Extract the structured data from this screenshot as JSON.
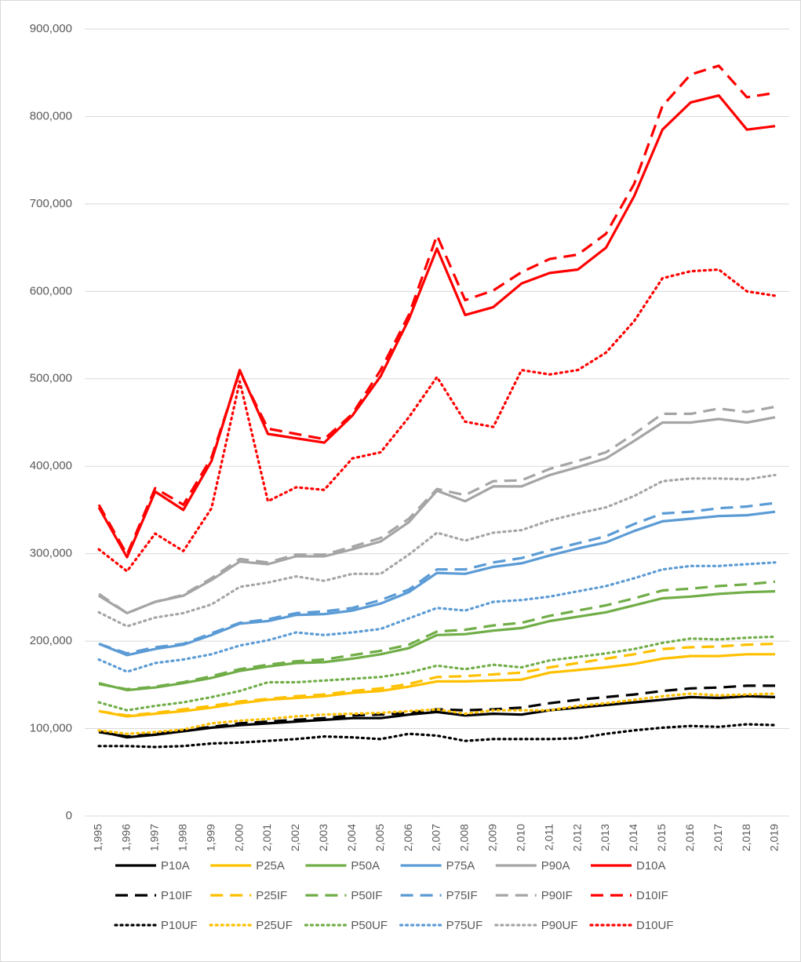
{
  "chart_data": {
    "type": "line",
    "categories": [
      "1,995",
      "1,996",
      "1,997",
      "1,998",
      "1,999",
      "2,000",
      "2,001",
      "2,002",
      "2,003",
      "2,004",
      "2,005",
      "2,006",
      "2,007",
      "2,008",
      "2,009",
      "2,010",
      "2,011",
      "2,012",
      "2,013",
      "2,014",
      "2,015",
      "2,016",
      "2,017",
      "2,018",
      "2,019"
    ],
    "ylim": [
      0,
      900000
    ],
    "yticks": [
      0,
      {
        "value": 100000,
        "label": "100,000"
      },
      {
        "value": 200000,
        "label": "200,000"
      },
      {
        "value": 300000,
        "label": "300,000"
      },
      {
        "value": 400000,
        "label": "400,000"
      },
      {
        "value": 500000,
        "label": "500,000"
      },
      {
        "value": 600000,
        "label": "600,000"
      },
      {
        "value": 700000,
        "label": "700,000"
      },
      {
        "value": 800000,
        "label": "800,000"
      },
      {
        "value": 900000,
        "label": "900,000"
      }
    ],
    "grid": true,
    "legend": "bottom",
    "series": [
      {
        "name": "P10A",
        "color": "#000000",
        "dash": "solid",
        "values": [
          97000,
          90000,
          93000,
          97000,
          101000,
          104000,
          106000,
          108000,
          110000,
          112000,
          112000,
          116000,
          119000,
          115000,
          117000,
          116000,
          121000,
          124000,
          127000,
          130000,
          133000,
          136000,
          135000,
          137000,
          136000
        ]
      },
      {
        "name": "P25A",
        "color": "#FFC000",
        "dash": "solid",
        "values": [
          120000,
          114000,
          117000,
          120000,
          124000,
          129000,
          133000,
          135000,
          137000,
          141000,
          143000,
          148000,
          154000,
          154000,
          155000,
          156000,
          164000,
          167000,
          170000,
          174000,
          180000,
          183000,
          183000,
          185000,
          185000
        ]
      },
      {
        "name": "P50A",
        "color": "#70AD47",
        "dash": "solid",
        "values": [
          152000,
          144000,
          147000,
          152000,
          158000,
          166000,
          171000,
          175000,
          176000,
          180000,
          185000,
          192000,
          207000,
          208000,
          212000,
          215000,
          223000,
          228000,
          233000,
          241000,
          249000,
          251000,
          254000,
          256000,
          257000
        ]
      },
      {
        "name": "P75A",
        "color": "#5B9BD5",
        "dash": "solid",
        "values": [
          197000,
          184000,
          191000,
          196000,
          207000,
          220000,
          223000,
          230000,
          231000,
          235000,
          243000,
          256000,
          278000,
          277000,
          285000,
          289000,
          298000,
          306000,
          313000,
          326000,
          337000,
          340000,
          343000,
          344000,
          348000
        ]
      },
      {
        "name": "P90A",
        "color": "#A5A5A5",
        "dash": "solid",
        "values": [
          252000,
          232000,
          245000,
          252000,
          270000,
          291000,
          288000,
          297000,
          297000,
          305000,
          314000,
          336000,
          372000,
          360000,
          377000,
          377000,
          390000,
          399000,
          409000,
          429000,
          450000,
          450000,
          454000,
          450000,
          456000
        ]
      },
      {
        "name": "D10A",
        "color": "#FF0000",
        "dash": "solid",
        "values": [
          353000,
          296000,
          371000,
          350000,
          406000,
          510000,
          437000,
          432000,
          427000,
          458000,
          503000,
          568000,
          649000,
          573000,
          582000,
          609000,
          621000,
          625000,
          650000,
          709000,
          785000,
          816000,
          824000,
          785000,
          789000
        ]
      },
      {
        "name": "P10IF",
        "color": "#000000",
        "dash": "dashed",
        "values": [
          96000,
          91000,
          94000,
          98000,
          102000,
          106000,
          108000,
          110000,
          112000,
          115000,
          116000,
          118000,
          122000,
          121000,
          122000,
          124000,
          129000,
          133000,
          136000,
          139000,
          143000,
          146000,
          147000,
          149000,
          149000
        ]
      },
      {
        "name": "P25IF",
        "color": "#FFC000",
        "dash": "dashed",
        "values": [
          120000,
          115000,
          118000,
          122000,
          126000,
          131000,
          134000,
          137000,
          139000,
          143000,
          146000,
          151000,
          159000,
          160000,
          162000,
          164000,
          170000,
          175000,
          180000,
          185000,
          191000,
          193000,
          194000,
          196000,
          197000
        ]
      },
      {
        "name": "P50IF",
        "color": "#70AD47",
        "dash": "dashed",
        "values": [
          151000,
          145000,
          148000,
          153000,
          160000,
          168000,
          173000,
          177000,
          179000,
          184000,
          189000,
          196000,
          211000,
          213000,
          218000,
          221000,
          229000,
          235000,
          241000,
          249000,
          258000,
          260000,
          263000,
          265000,
          268000
        ]
      },
      {
        "name": "P75IF",
        "color": "#5B9BD5",
        "dash": "dashed",
        "values": [
          197000,
          186000,
          193000,
          197000,
          209000,
          221000,
          225000,
          232000,
          234000,
          238000,
          247000,
          259000,
          282000,
          282000,
          290000,
          295000,
          304000,
          312000,
          320000,
          334000,
          346000,
          348000,
          352000,
          354000,
          358000
        ]
      },
      {
        "name": "P90IF",
        "color": "#A5A5A5",
        "dash": "dashed",
        "values": [
          254000,
          232000,
          245000,
          253000,
          272000,
          294000,
          290000,
          299000,
          299000,
          308000,
          318000,
          340000,
          374000,
          367000,
          383000,
          384000,
          397000,
          406000,
          416000,
          437000,
          460000,
          460000,
          466000,
          462000,
          468000
        ]
      },
      {
        "name": "D10IF",
        "color": "#FF0000",
        "dash": "dashed",
        "values": [
          356000,
          299000,
          375000,
          356000,
          410000,
          508000,
          443000,
          437000,
          431000,
          460000,
          510000,
          573000,
          664000,
          590000,
          601000,
          622000,
          637000,
          642000,
          666000,
          723000,
          812000,
          848000,
          858000,
          822000,
          827000
        ]
      },
      {
        "name": "P10UF",
        "color": "#000000",
        "dash": "dotted",
        "values": [
          80000,
          80000,
          79000,
          80000,
          83000,
          84000,
          86000,
          88000,
          91000,
          90000,
          88000,
          94000,
          92000,
          86000,
          88000,
          88000,
          88000,
          89000,
          94000,
          98000,
          101000,
          103000,
          102000,
          105000,
          104000
        ]
      },
      {
        "name": "P25UF",
        "color": "#FFC000",
        "dash": "dotted",
        "values": [
          98000,
          94000,
          96000,
          99000,
          106000,
          109000,
          111000,
          114000,
          116000,
          117000,
          118000,
          120000,
          122000,
          117000,
          121000,
          121000,
          121000,
          126000,
          129000,
          133000,
          137000,
          140000,
          138000,
          139000,
          140000
        ]
      },
      {
        "name": "P50UF",
        "color": "#70AD47",
        "dash": "dotted",
        "values": [
          130000,
          121000,
          126000,
          130000,
          136000,
          143000,
          153000,
          153000,
          155000,
          157000,
          159000,
          164000,
          172000,
          168000,
          173000,
          170000,
          178000,
          182000,
          186000,
          191000,
          198000,
          203000,
          202000,
          204000,
          205000
        ]
      },
      {
        "name": "P75UF",
        "color": "#5B9BD5",
        "dash": "dotted",
        "values": [
          179000,
          165000,
          175000,
          179000,
          185000,
          195000,
          201000,
          210000,
          207000,
          210000,
          214000,
          226000,
          238000,
          235000,
          245000,
          247000,
          251000,
          257000,
          263000,
          272000,
          282000,
          286000,
          286000,
          288000,
          290000
        ]
      },
      {
        "name": "P90UF",
        "color": "#A5A5A5",
        "dash": "dotted",
        "values": [
          233000,
          217000,
          227000,
          232000,
          242000,
          262000,
          267000,
          274000,
          269000,
          277000,
          277000,
          299000,
          324000,
          315000,
          324000,
          327000,
          338000,
          346000,
          353000,
          366000,
          383000,
          386000,
          386000,
          385000,
          390000
        ]
      },
      {
        "name": "D10UF",
        "color": "#FF0000",
        "dash": "dotted",
        "values": [
          305000,
          280000,
          323000,
          303000,
          352000,
          497000,
          360000,
          376000,
          373000,
          409000,
          416000,
          456000,
          502000,
          451000,
          445000,
          510000,
          505000,
          510000,
          530000,
          566000,
          615000,
          623000,
          625000,
          600000,
          595000
        ]
      }
    ]
  }
}
